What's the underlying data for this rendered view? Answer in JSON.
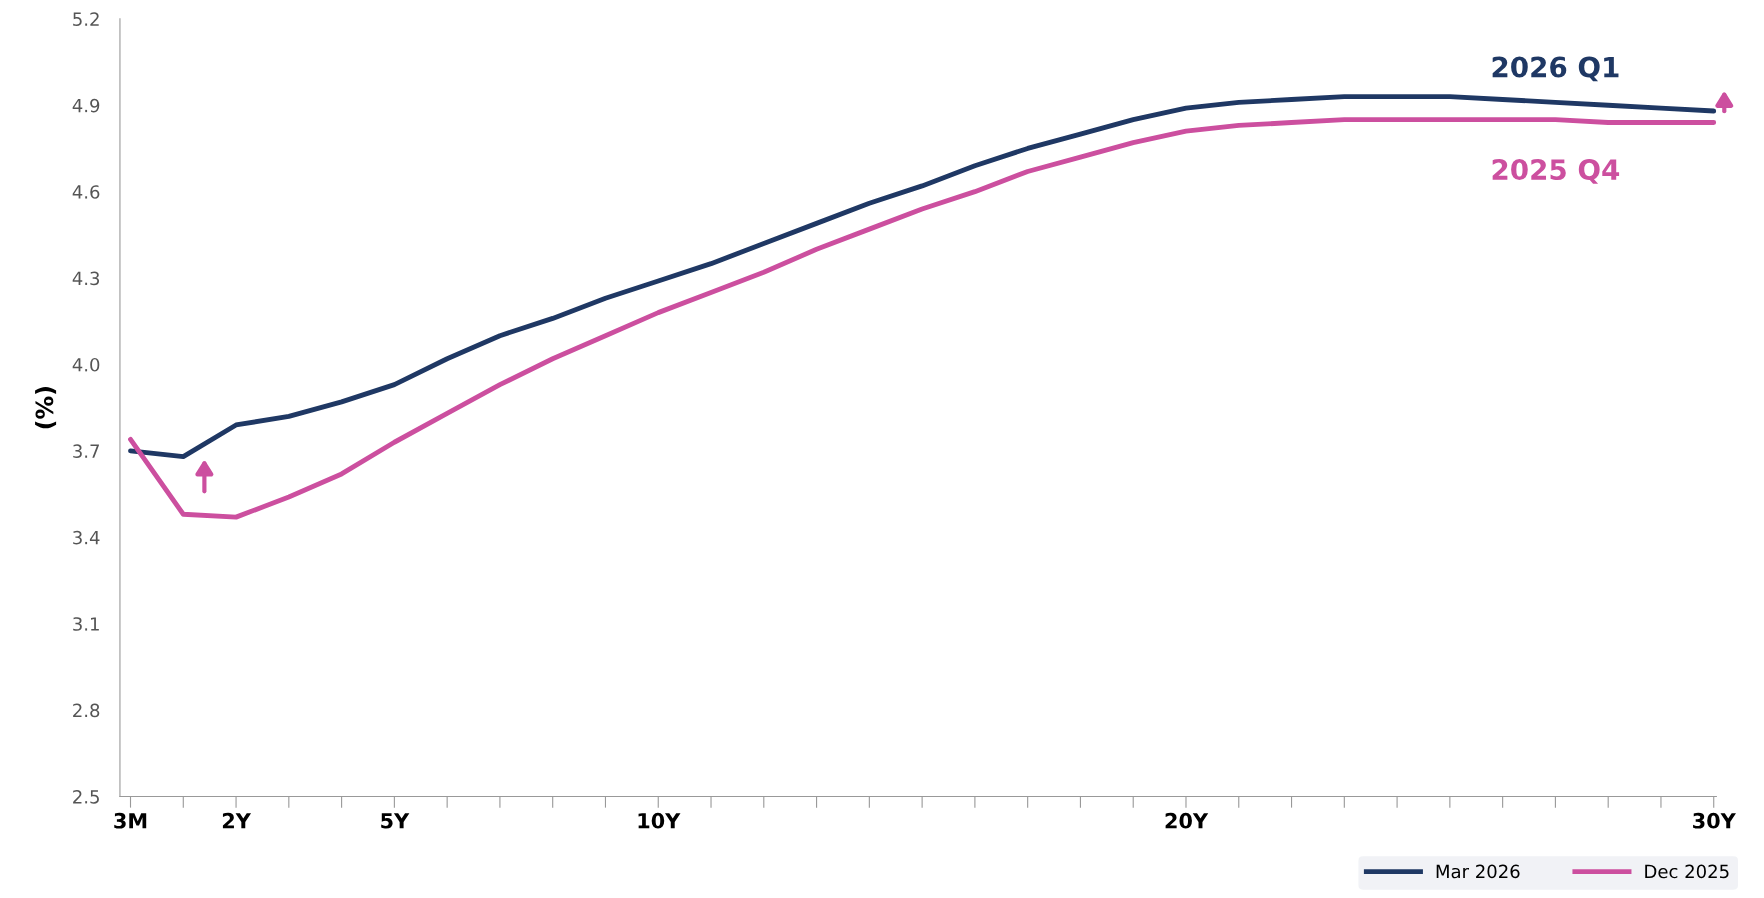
{
  "chart_data": {
    "type": "line",
    "ylabel": "(%)",
    "categories": [
      "3M",
      null,
      "2Y",
      null,
      null,
      "5Y",
      null,
      null,
      null,
      null,
      "10Y",
      null,
      null,
      null,
      null,
      null,
      null,
      null,
      null,
      null,
      "20Y",
      null,
      null,
      null,
      null,
      null,
      null,
      null,
      null,
      null,
      "30Y"
    ],
    "series": [
      {
        "name": "Mar 2026",
        "color": "#1f3864",
        "values": [
          3.7,
          3.68,
          3.79,
          3.82,
          3.87,
          3.93,
          4.02,
          4.1,
          4.16,
          4.23,
          4.29,
          4.35,
          4.42,
          4.49,
          4.56,
          4.62,
          4.69,
          4.75,
          4.8,
          4.85,
          4.89,
          4.91,
          4.92,
          4.93,
          4.93,
          4.93,
          4.92,
          4.91,
          4.9,
          4.89,
          4.88
        ]
      },
      {
        "name": "Dec 2025",
        "color": "#cc4f9f",
        "values": [
          3.74,
          3.48,
          3.47,
          3.54,
          3.62,
          3.73,
          3.83,
          3.93,
          4.02,
          4.1,
          4.18,
          4.25,
          4.32,
          4.4,
          4.47,
          4.54,
          4.6,
          4.67,
          4.72,
          4.77,
          4.81,
          4.83,
          4.84,
          4.85,
          4.85,
          4.85,
          4.85,
          4.85,
          4.84,
          4.84,
          4.84
        ]
      }
    ],
    "annotations": [
      "2026 Q1",
      "2025 Q4"
    ],
    "ylim": [
      2.5,
      5.2
    ],
    "yticks": [
      2.5,
      2.8,
      3.1,
      3.4,
      3.7,
      {
        "value": 4.0,
        "label": "4.0"
      },
      4.3,
      4.6,
      4.9,
      5.2
    ],
    "grid": false,
    "legend": "bottom right",
    "marker": "none",
    "line_style": "solid"
  }
}
